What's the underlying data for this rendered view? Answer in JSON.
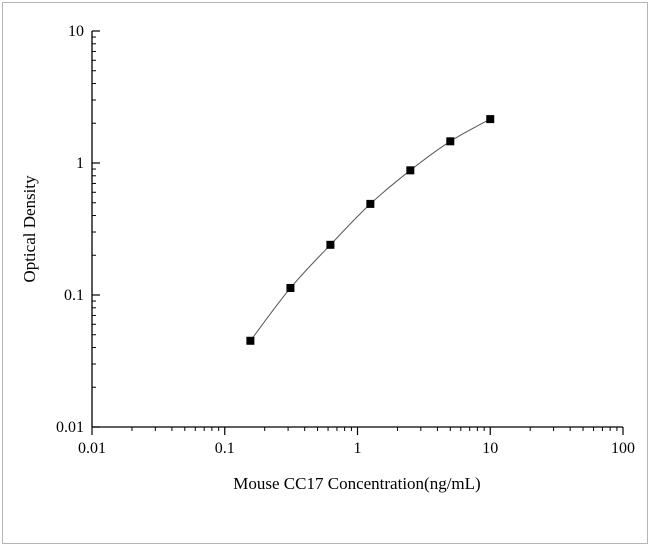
{
  "chart_data": {
    "type": "scatter",
    "title": "",
    "xlabel": "Mouse CC17 Concentration(ng/mL)",
    "ylabel": "Optical Density",
    "xscale": "log",
    "yscale": "log",
    "xlim": [
      0.01,
      100
    ],
    "ylim": [
      0.01,
      10
    ],
    "xticks": [
      0.01,
      0.1,
      1,
      10,
      100
    ],
    "xtick_labels": [
      "0.01",
      "0.1",
      "1",
      "10",
      "100"
    ],
    "yticks": [
      0.01,
      0.1,
      1,
      10
    ],
    "ytick_labels": [
      "0.01",
      "0.1",
      "1",
      "10"
    ],
    "grid": false,
    "legend": "none",
    "series": [
      {
        "x": [
          0.156,
          0.3125,
          0.625,
          1.25,
          2.5,
          5,
          10
        ],
        "y": [
          0.045,
          0.113,
          0.24,
          0.49,
          0.88,
          1.46,
          2.15
        ],
        "marker": "square",
        "line": "smooth"
      }
    ],
    "colors": {
      "marker": "#000000",
      "line": "#555555",
      "axis": "#000000"
    }
  }
}
